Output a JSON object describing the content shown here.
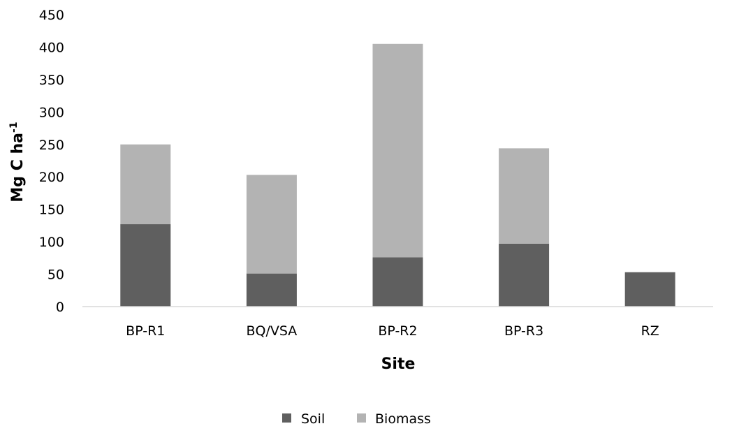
{
  "chart_data": {
    "type": "bar",
    "stacked": true,
    "categories": [
      "BP-R1",
      "BQ/VSA",
      "BP-R2",
      "BP-R3",
      "RZ"
    ],
    "series": [
      {
        "name": "Soil",
        "values": [
          127,
          51,
          76,
          97,
          53
        ],
        "color": "#5f5f5f"
      },
      {
        "name": "Biomass",
        "values": [
          123,
          152,
          329,
          147,
          0
        ],
        "color": "#b3b3b3"
      }
    ],
    "xlabel": "Site",
    "ylabel_main": "Mg C ha",
    "ylabel_sup": "-1",
    "ylim": [
      0,
      450
    ],
    "yticks": [
      0,
      50,
      100,
      150,
      200,
      250,
      300,
      350,
      400,
      450
    ],
    "grid": false,
    "legend_position": "bottom"
  }
}
